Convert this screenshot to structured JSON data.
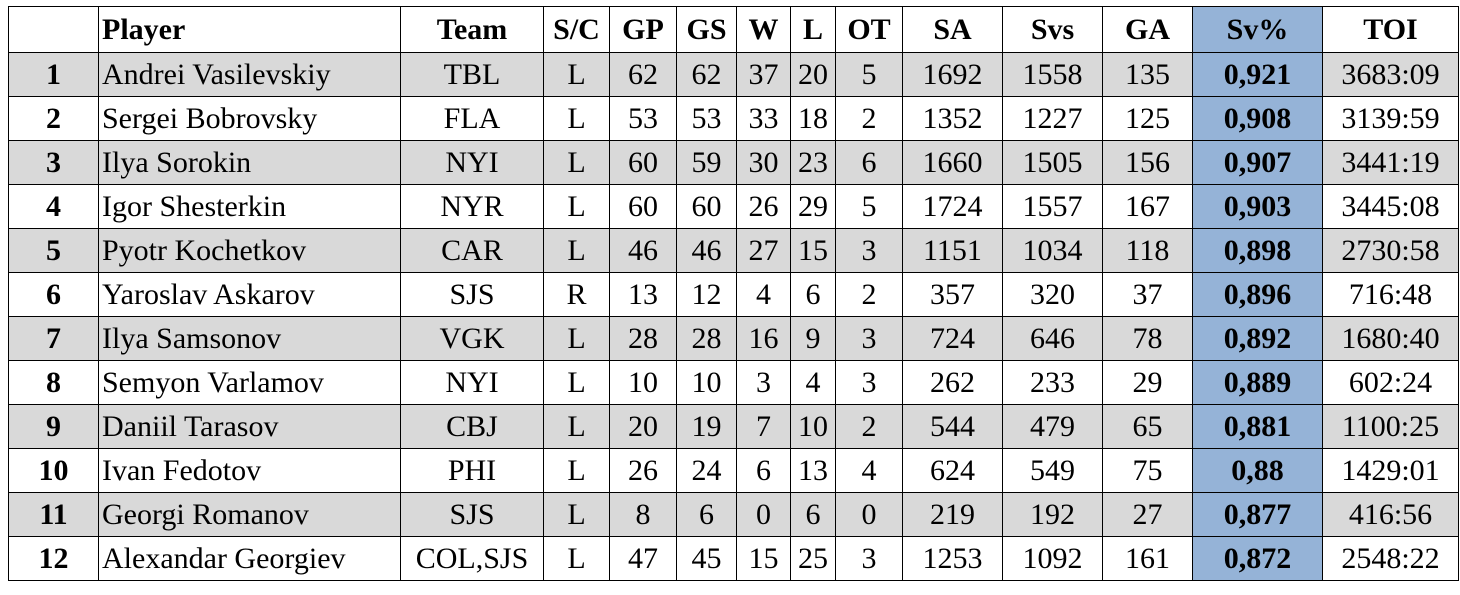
{
  "table": {
    "headers": [
      "",
      "Player",
      "Team",
      "S/C",
      "GP",
      "GS",
      "W",
      "L",
      "OT",
      "SA",
      "Svs",
      "GA",
      "Sv%",
      "TOI"
    ],
    "rows": [
      [
        "1",
        "Andrei Vasilevskiy",
        "TBL",
        "L",
        "62",
        "62",
        "37",
        "20",
        "5",
        "1692",
        "1558",
        "135",
        "0,921",
        "3683:09"
      ],
      [
        "2",
        "Sergei Bobrovsky",
        "FLA",
        "L",
        "53",
        "53",
        "33",
        "18",
        "2",
        "1352",
        "1227",
        "125",
        "0,908",
        "3139:59"
      ],
      [
        "3",
        "Ilya Sorokin",
        "NYI",
        "L",
        "60",
        "59",
        "30",
        "23",
        "6",
        "1660",
        "1505",
        "156",
        "0,907",
        "3441:19"
      ],
      [
        "4",
        "Igor Shesterkin",
        "NYR",
        "L",
        "60",
        "60",
        "26",
        "29",
        "5",
        "1724",
        "1557",
        "167",
        "0,903",
        "3445:08"
      ],
      [
        "5",
        "Pyotr Kochetkov",
        "CAR",
        "L",
        "46",
        "46",
        "27",
        "15",
        "3",
        "1151",
        "1034",
        "118",
        "0,898",
        "2730:58"
      ],
      [
        "6",
        "Yaroslav Askarov",
        "SJS",
        "R",
        "13",
        "12",
        "4",
        "6",
        "2",
        "357",
        "320",
        "37",
        "0,896",
        "716:48"
      ],
      [
        "7",
        "Ilya Samsonov",
        "VGK",
        "L",
        "28",
        "28",
        "16",
        "9",
        "3",
        "724",
        "646",
        "78",
        "0,892",
        "1680:40"
      ],
      [
        "8",
        "Semyon Varlamov",
        "NYI",
        "L",
        "10",
        "10",
        "3",
        "4",
        "3",
        "262",
        "233",
        "29",
        "0,889",
        "602:24"
      ],
      [
        "9",
        "Daniil Tarasov",
        "CBJ",
        "L",
        "20",
        "19",
        "7",
        "10",
        "2",
        "544",
        "479",
        "65",
        "0,881",
        "1100:25"
      ],
      [
        "10",
        "Ivan Fedotov",
        "PHI",
        "L",
        "26",
        "24",
        "6",
        "13",
        "4",
        "624",
        "549",
        "75",
        "0,88",
        "1429:01"
      ],
      [
        "11",
        "Georgi Romanov",
        "SJS",
        "L",
        "8",
        "6",
        "0",
        "6",
        "0",
        "219",
        "192",
        "27",
        "0,877",
        "416:56"
      ],
      [
        "12",
        "Alexandar Georgiev",
        "COL,SJS",
        "L",
        "47",
        "45",
        "15",
        "25",
        "3",
        "1253",
        "1092",
        "161",
        "0,872",
        "2548:22"
      ]
    ]
  },
  "chart_data": {
    "type": "table",
    "columns": [
      "",
      "Player",
      "Team",
      "S/C",
      "GP",
      "GS",
      "W",
      "L",
      "OT",
      "SA",
      "Svs",
      "GA",
      "Sv%",
      "TOI"
    ],
    "highlighted_column": "Sv%",
    "colors": {
      "highlight": "#95b3d7",
      "row_shade": "#d9d9d9",
      "border": "#000000"
    }
  }
}
